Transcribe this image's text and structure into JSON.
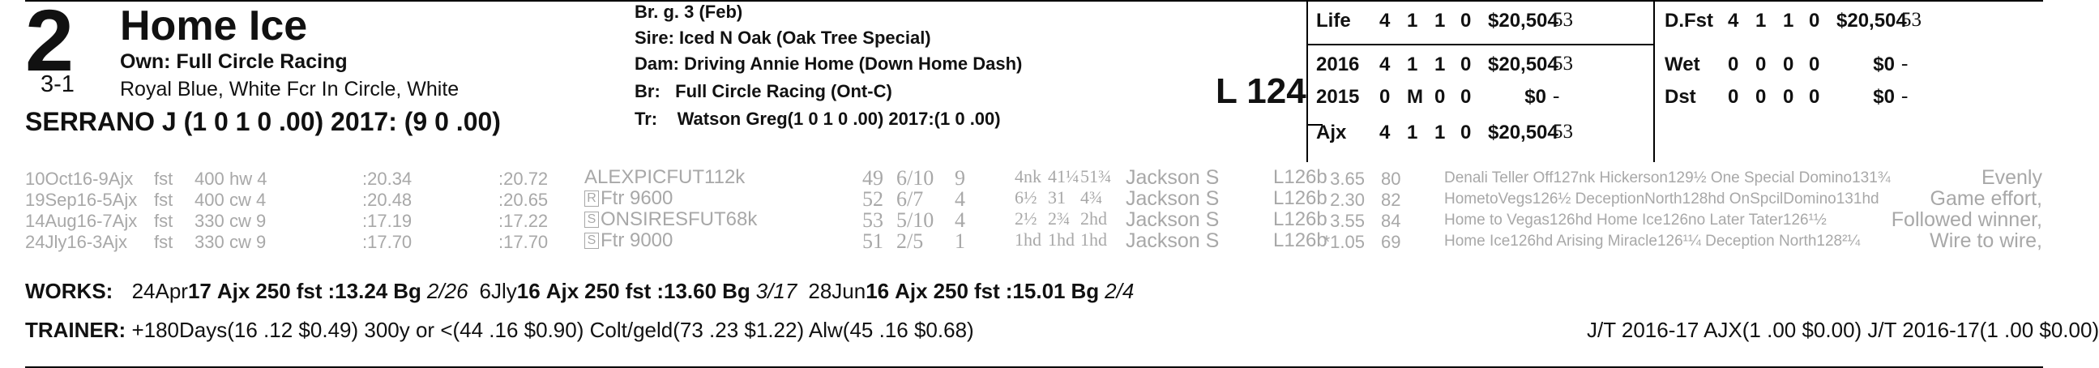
{
  "entry": {
    "program_number": "2",
    "morning_line": "3-1",
    "horse_name": "Home Ice",
    "owner": "Own: Full Circle Racing",
    "silks": "Royal Blue, White Fcr In Circle, White",
    "jockey": "SERRANO J (1 0 1 0 .00) 2017: (9 0 .00)"
  },
  "pedigree": {
    "sex_age": "Br. g. 3 (Feb)",
    "sire_label": "Sire:",
    "sire": "Iced N Oak (Oak Tree Special)",
    "dam_label": "Dam:",
    "dam": "Driving Annie Home (Down Home Dash)",
    "breeder_label": "Br:",
    "breeder": "Full Circle Racing (Ont-C)",
    "trainer_label": "Tr:",
    "trainer": "Watson Greg(1 0 1 0 .00) 2017:(1 0 .00)"
  },
  "weight": "L 124",
  "stats_left": [
    {
      "label": "Life",
      "starts": "4",
      "w": "1",
      "p": "1",
      "s": "0",
      "earn": "$20,504",
      "spd": "53"
    },
    {
      "label": "2016",
      "starts": "4",
      "w": "1",
      "p": "1",
      "s": "0",
      "earn": "$20,504",
      "spd": "53"
    },
    {
      "label": "2015",
      "starts": "0",
      "w": "M",
      "p": "0",
      "s": "0",
      "earn": "$0",
      "spd": "-"
    },
    {
      "label": "Ajx",
      "starts": "4",
      "w": "1",
      "p": "1",
      "s": "0",
      "earn": "$20,504",
      "spd": "53"
    }
  ],
  "stats_right": [
    {
      "label": "D.Fst",
      "starts": "4",
      "w": "1",
      "p": "1",
      "s": "0",
      "earn": "$20,504",
      "spd": "53"
    },
    {
      "label": "Wet",
      "starts": "0",
      "w": "0",
      "p": "0",
      "s": "0",
      "earn": "$0",
      "spd": "-"
    },
    {
      "label": "Dst",
      "starts": "0",
      "w": "0",
      "p": "0",
      "s": "0",
      "earn": "$0",
      "spd": "-"
    }
  ],
  "past_performances": [
    {
      "date": "10Oct16-9Ajx",
      "cond": "fst",
      "dist": "400",
      "trk": "hw 4",
      "f1": ":20.34",
      "f2": ":20.72",
      "race_icon": "",
      "race": "ALEXPICFUT112k",
      "spd": "49",
      "pp": "6/10",
      "st": "9",
      "c1": "4nk",
      "c2": "41¼",
      "fin": "51¾",
      "jockey": "Jackson S",
      "med": "L126b",
      "odds": "3.65",
      "bris": "80",
      "comment": "Denali Teller Off127nk Hickerson129½ One Special Domino131¾",
      "note": "Evenly"
    },
    {
      "date": "19Sep16-5Ajx",
      "cond": "fst",
      "dist": "400",
      "trk": "cw 4",
      "f1": ":20.48",
      "f2": ":20.65",
      "race_icon": "R",
      "race": "Ftr 9600",
      "spd": "52",
      "pp": "6/7",
      "st": "4",
      "c1": "6½",
      "c2": "31",
      "fin": "4¾",
      "jockey": "Jackson S",
      "med": "L126b",
      "odds": "2.30",
      "bris": "82",
      "comment": "HometoVegs126½ DeceptionNorth128hd OnSpcilDomino131hd",
      "note": "Game effort,"
    },
    {
      "date": "14Aug16-7Ajx",
      "cond": "fst",
      "dist": "330",
      "trk": "cw 9",
      "f1": ":17.19",
      "f2": ":17.22",
      "race_icon": "S",
      "race": "ONSIRESFUT68k",
      "spd": "53",
      "pp": "5/10",
      "st": "4",
      "c1": "2½",
      "c2": "2¾",
      "fin": "2hd",
      "jockey": "Jackson S",
      "med": "L126b",
      "odds": "3.55",
      "bris": "84",
      "comment": "Home to Vegas126hd Home Ice126no Later Tater126¹½",
      "note": "Followed winner,"
    },
    {
      "date": "24Jly16-3Ajx",
      "cond": "fst",
      "dist": "330",
      "trk": "cw 9",
      "f1": ":17.70",
      "f2": ":17.70",
      "race_icon": "S",
      "race": "Ftr 9000",
      "spd": "51",
      "pp": "2/5",
      "st": "1",
      "c1": "1hd",
      "c2": "1hd",
      "fin": "1hd",
      "jockey": "Jackson S",
      "med": "L126b",
      "odds": "*1.05",
      "bris": "69",
      "comment": "Home Ice126hd Arising Miracle126¹¼ Deception North128²¼",
      "note": "Wire to wire,"
    }
  ],
  "works": {
    "label": "WORKS:",
    "items": [
      {
        "date": "24Apr",
        "yr": "17",
        "trk": "Ajx",
        "dist": "250",
        "cond": "fst",
        "time": ":13.24",
        "type": "Bg",
        "rank": "2/26"
      },
      {
        "date": "6Jly",
        "yr": "16",
        "trk": "Ajx",
        "dist": "250",
        "cond": "fst",
        "time": ":13.60",
        "type": "Bg",
        "rank": "3/17"
      },
      {
        "date": "28Jun",
        "yr": "16",
        "trk": "Ajx",
        "dist": "250",
        "cond": "fst",
        "time": ":15.01",
        "type": "Bg",
        "rank": "2/4"
      }
    ]
  },
  "trainer_line": {
    "label": "TRAINER:",
    "text": "+180Days(16 .12 $0.49) 300y or <(44 .16 $0.90) Colt/geld(73 .23 $1.22) Alw(45 .16 $0.68)",
    "jt": "J/T 2016-17 AJX(1 .00 $0.00)  J/T 2016-17(1 .00 $0.00)"
  }
}
